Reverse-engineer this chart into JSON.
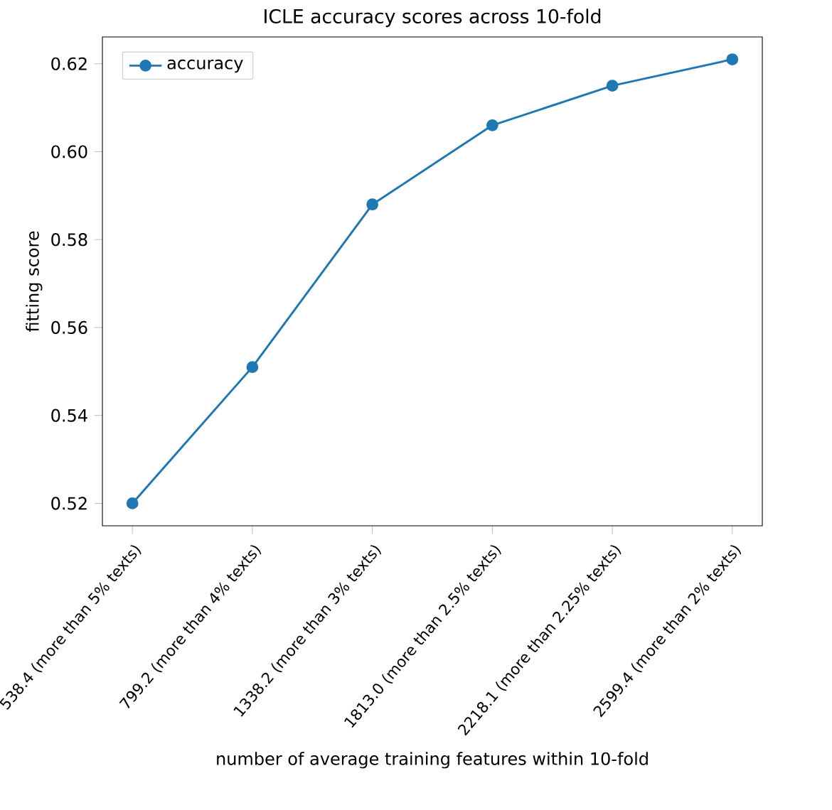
{
  "chart_data": {
    "type": "line",
    "title": "ICLE accuracy scores across 10-fold",
    "xlabel": "number of average training features within 10-fold",
    "ylabel": "fitting score",
    "categories": [
      "538.4 (more than 5% texts)",
      "799.2 (more than 4% texts)",
      "1338.2 (more than 3% texts)",
      "1813.0 (more than 2.5% texts)",
      "2218.1 (more than 2.25% texts)",
      "2599.4 (more than 2% texts)"
    ],
    "series": [
      {
        "name": "accuracy",
        "color": "#1f77b4",
        "values": [
          0.52,
          0.551,
          0.588,
          0.606,
          0.615,
          0.621
        ]
      }
    ],
    "ylim": [
      0.5149,
      0.6261
    ],
    "yticks": [
      {
        "value": 0.52,
        "label": "0.52"
      },
      {
        "value": 0.54,
        "label": "0.54"
      },
      {
        "value": 0.56,
        "label": "0.56"
      },
      {
        "value": 0.58,
        "label": "0.58"
      },
      {
        "value": 0.6,
        "label": "0.60"
      },
      {
        "value": 0.62,
        "label": "0.62"
      }
    ],
    "legend": "top left",
    "marker": "circle",
    "line_style": "solid",
    "grid": false
  }
}
